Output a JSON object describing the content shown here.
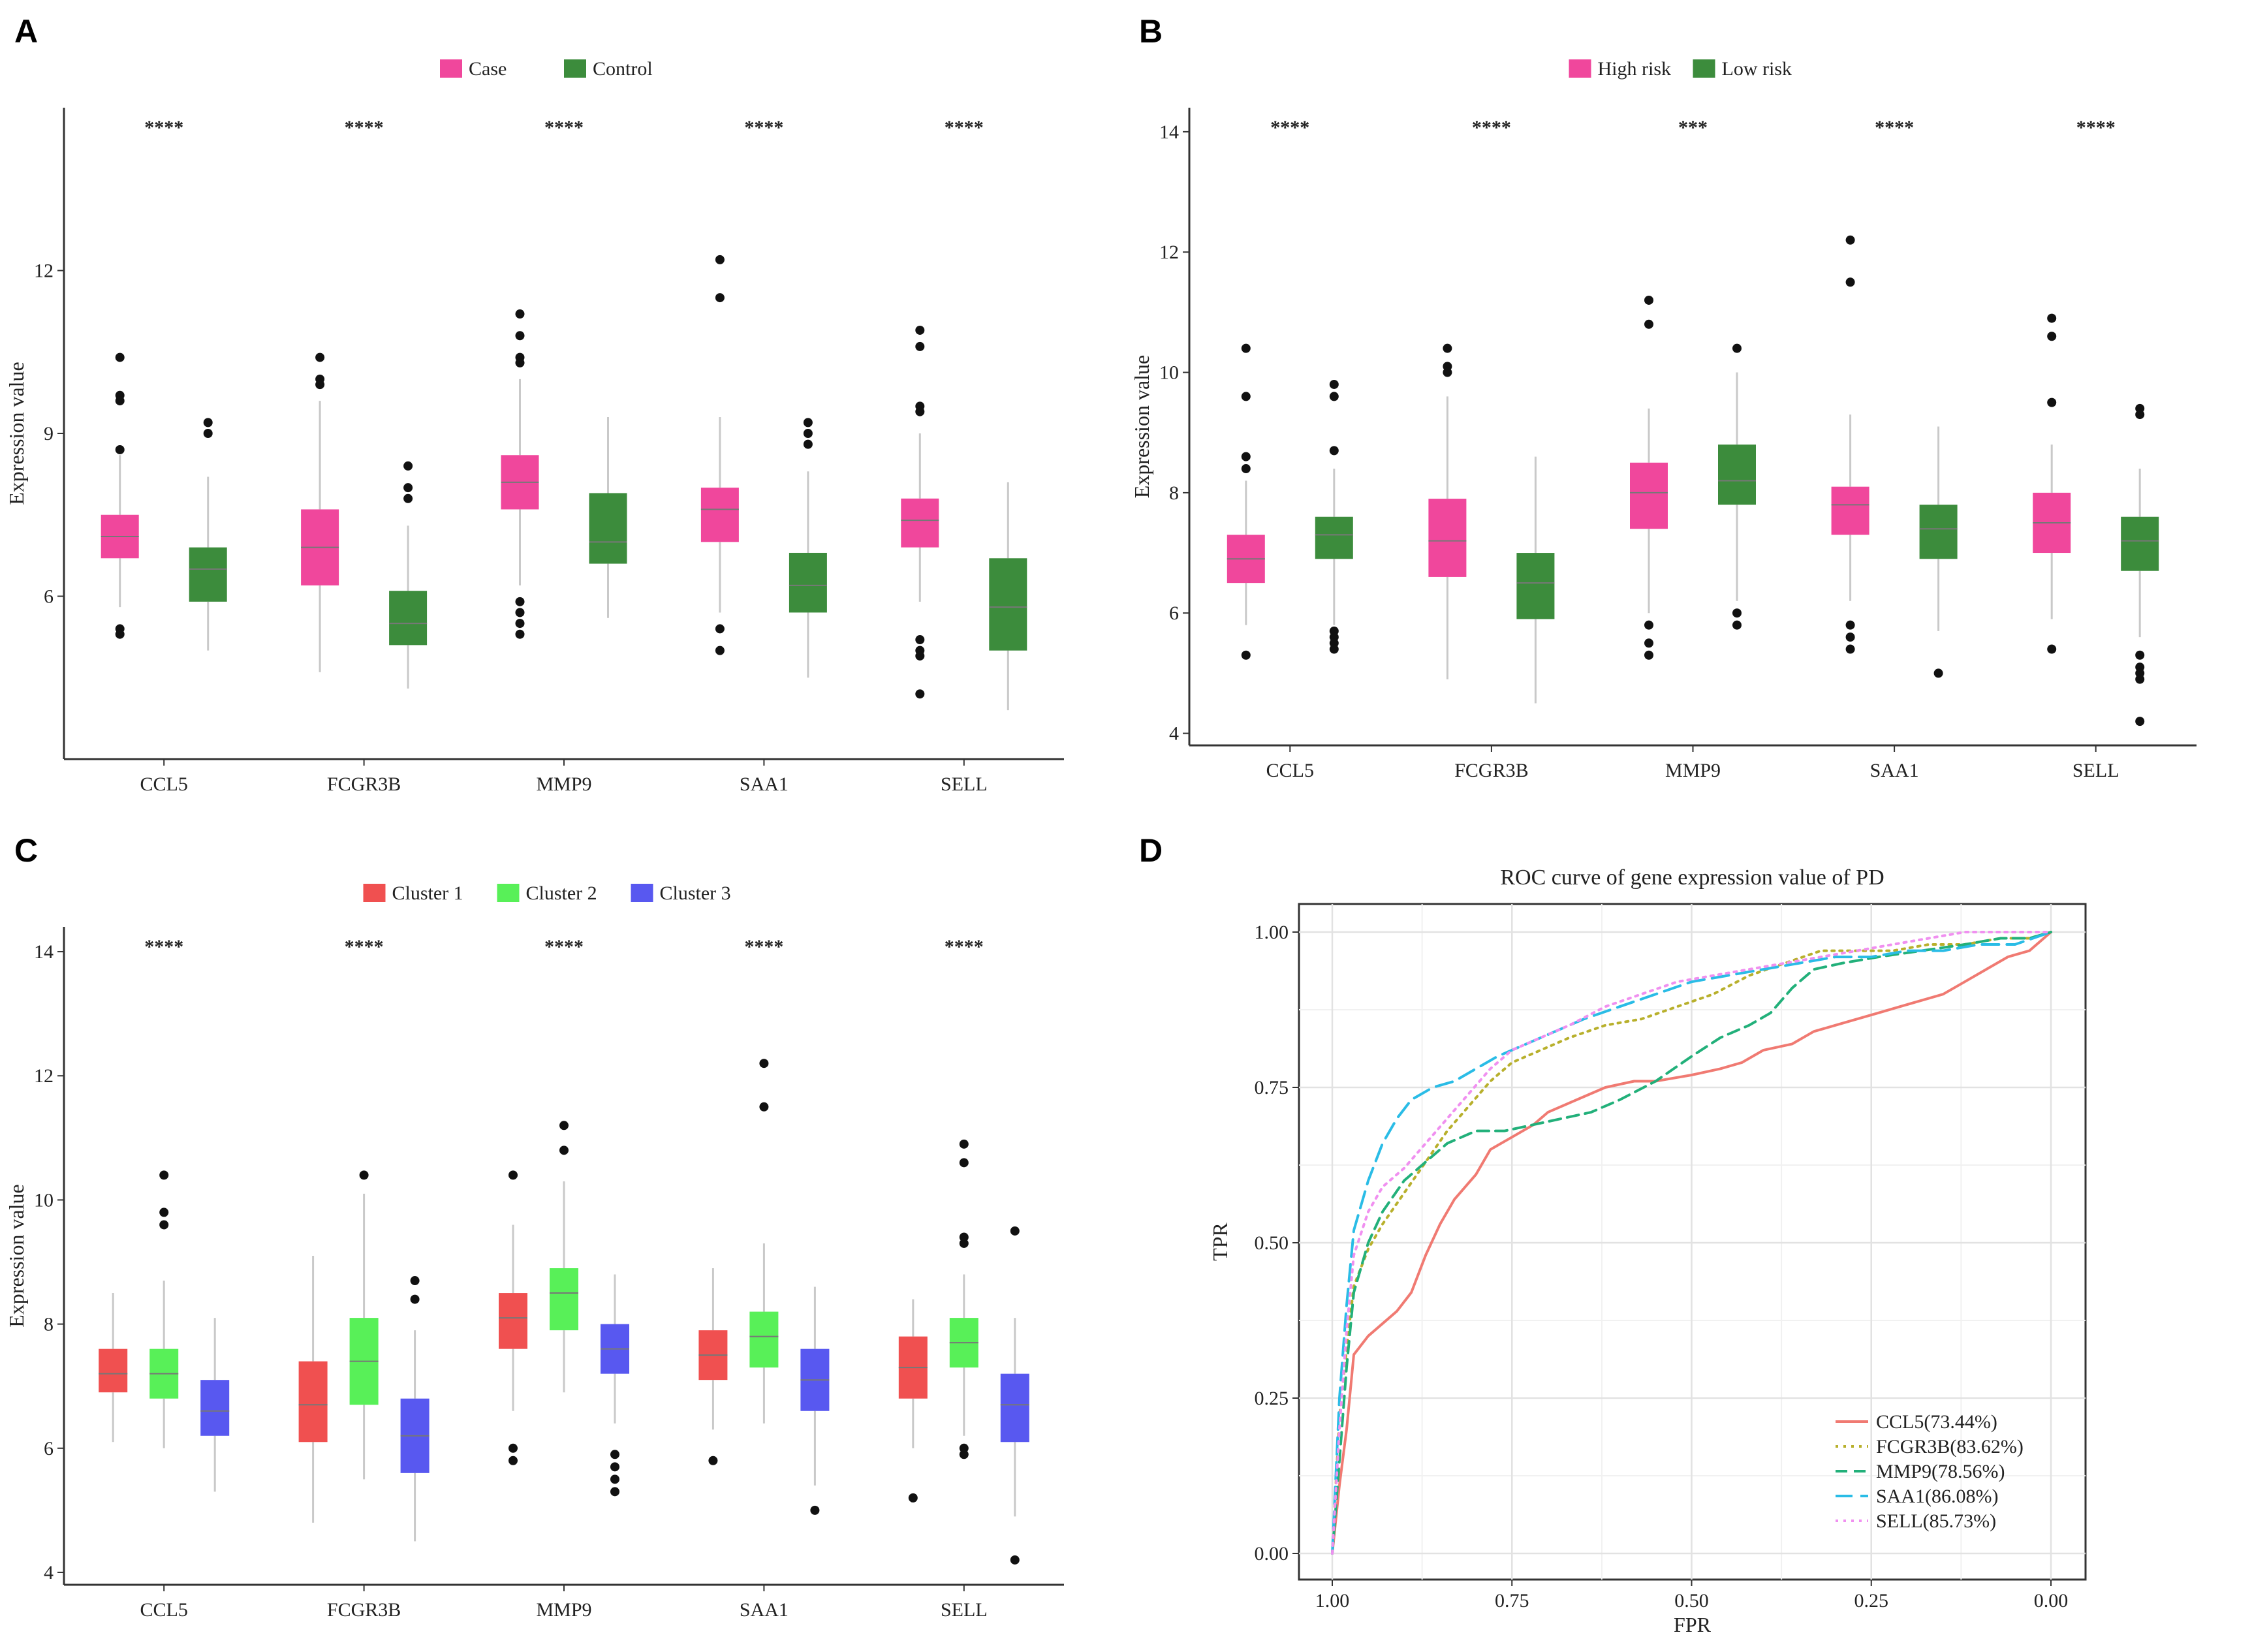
{
  "panels": {
    "A": "A",
    "B": "B",
    "C": "C",
    "D": "D"
  },
  "colors": {
    "case": "#f0479c",
    "control": "#3c8c3c",
    "cluster1": "#f05050",
    "cluster2": "#58f058",
    "cluster3": "#5858f0",
    "ccl5": "#f07a72",
    "fcgr3b": "#b8b02c",
    "mmp9": "#22b07a",
    "saa1": "#2abce6",
    "sell": "#f090f0"
  },
  "chart_data": [
    {
      "id": "A",
      "type": "box",
      "ylabel": "Expression value",
      "ylim": [
        3.0,
        15.0
      ],
      "yticks": [
        6,
        9,
        12
      ],
      "categories": [
        "CCL5",
        "FCGR3B",
        "MMP9",
        "SAA1",
        "SELL"
      ],
      "significance": [
        "****",
        "****",
        "****",
        "****",
        "****"
      ],
      "legend": [
        "Case",
        "Control"
      ],
      "series": [
        {
          "name": "Case",
          "color_key": "case",
          "boxes": [
            {
              "q1": 6.7,
              "med": 7.1,
              "q3": 7.5,
              "lo": 5.8,
              "hi": 8.6,
              "out": [
                10.4,
                9.7,
                9.6,
                8.7,
                5.4,
                5.3
              ]
            },
            {
              "q1": 6.2,
              "med": 6.9,
              "q3": 7.6,
              "lo": 4.6,
              "hi": 9.6,
              "out": [
                10.4,
                10.0,
                9.9
              ]
            },
            {
              "q1": 7.6,
              "med": 8.1,
              "q3": 8.6,
              "lo": 6.2,
              "hi": 10.0,
              "out": [
                11.2,
                10.8,
                10.4,
                10.3,
                5.9,
                5.7,
                5.5,
                5.3
              ]
            },
            {
              "q1": 7.0,
              "med": 7.6,
              "q3": 8.0,
              "lo": 5.7,
              "hi": 9.3,
              "out": [
                12.2,
                11.5,
                5.4,
                5.0
              ]
            },
            {
              "q1": 6.9,
              "med": 7.4,
              "q3": 7.8,
              "lo": 5.9,
              "hi": 9.0,
              "out": [
                10.9,
                10.6,
                9.5,
                9.4,
                5.2,
                5.0,
                4.9,
                4.2
              ]
            }
          ]
        },
        {
          "name": "Control",
          "color_key": "control",
          "boxes": [
            {
              "q1": 5.9,
              "med": 6.5,
              "q3": 6.9,
              "lo": 5.0,
              "hi": 8.2,
              "out": [
                9.2,
                9.0
              ]
            },
            {
              "q1": 5.1,
              "med": 5.5,
              "q3": 6.1,
              "lo": 4.3,
              "hi": 7.3,
              "out": [
                8.4,
                8.0,
                7.8
              ]
            },
            {
              "q1": 6.6,
              "med": 7.0,
              "q3": 7.9,
              "lo": 5.6,
              "hi": 9.3,
              "out": []
            },
            {
              "q1": 5.7,
              "med": 6.2,
              "q3": 6.8,
              "lo": 4.5,
              "hi": 8.3,
              "out": [
                9.2,
                9.0,
                8.8
              ]
            },
            {
              "q1": 5.0,
              "med": 5.8,
              "q3": 6.7,
              "lo": 3.9,
              "hi": 8.1,
              "out": []
            }
          ]
        }
      ]
    },
    {
      "id": "B",
      "type": "box",
      "ylabel": "Expression value",
      "ylim": [
        3.8,
        14.4
      ],
      "yticks": [
        4,
        6,
        8,
        10,
        12,
        14
      ],
      "categories": [
        "CCL5",
        "FCGR3B",
        "MMP9",
        "SAA1",
        "SELL"
      ],
      "significance": [
        "****",
        "****",
        "***",
        "****",
        "****"
      ],
      "legend": [
        "High risk",
        "Low risk"
      ],
      "series": [
        {
          "name": "High risk",
          "color_key": "case",
          "boxes": [
            {
              "q1": 6.5,
              "med": 6.9,
              "q3": 7.3,
              "lo": 5.8,
              "hi": 8.2,
              "out": [
                10.4,
                9.6,
                8.6,
                8.4,
                5.3
              ]
            },
            {
              "q1": 6.6,
              "med": 7.2,
              "q3": 7.9,
              "lo": 4.9,
              "hi": 9.6,
              "out": [
                10.4,
                10.1,
                10.0
              ]
            },
            {
              "q1": 7.4,
              "med": 8.0,
              "q3": 8.5,
              "lo": 6.0,
              "hi": 9.4,
              "out": [
                11.2,
                10.8,
                5.8,
                5.5,
                5.3
              ]
            },
            {
              "q1": 7.3,
              "med": 7.8,
              "q3": 8.1,
              "lo": 6.2,
              "hi": 9.3,
              "out": [
                12.2,
                11.5,
                5.8,
                5.6,
                5.4
              ]
            },
            {
              "q1": 7.0,
              "med": 7.5,
              "q3": 8.0,
              "lo": 5.9,
              "hi": 8.8,
              "out": [
                10.9,
                10.6,
                9.5,
                5.4
              ]
            }
          ]
        },
        {
          "name": "Low risk",
          "color_key": "control",
          "boxes": [
            {
              "q1": 6.9,
              "med": 7.3,
              "q3": 7.6,
              "lo": 5.8,
              "hi": 8.4,
              "out": [
                9.8,
                9.6,
                8.7,
                5.7,
                5.6,
                5.5,
                5.4
              ]
            },
            {
              "q1": 5.9,
              "med": 6.5,
              "q3": 7.0,
              "lo": 4.5,
              "hi": 8.6,
              "out": []
            },
            {
              "q1": 7.8,
              "med": 8.2,
              "q3": 8.8,
              "lo": 6.2,
              "hi": 10.0,
              "out": [
                10.4,
                6.0,
                5.8
              ]
            },
            {
              "q1": 6.9,
              "med": 7.4,
              "q3": 7.8,
              "lo": 5.7,
              "hi": 9.1,
              "out": [
                5.0
              ]
            },
            {
              "q1": 6.7,
              "med": 7.2,
              "q3": 7.6,
              "lo": 5.6,
              "hi": 8.4,
              "out": [
                9.4,
                9.3,
                5.3,
                5.1,
                5.0,
                4.9,
                4.2
              ]
            }
          ]
        }
      ]
    },
    {
      "id": "C",
      "type": "box",
      "ylabel": "Expression value",
      "ylim": [
        3.8,
        14.4
      ],
      "yticks": [
        4,
        6,
        8,
        10,
        12,
        14
      ],
      "categories": [
        "CCL5",
        "FCGR3B",
        "MMP9",
        "SAA1",
        "SELL"
      ],
      "significance": [
        "****",
        "****",
        "****",
        "****",
        "****"
      ],
      "legend": [
        "Cluster 1",
        "Cluster 2",
        "Cluster 3"
      ],
      "series": [
        {
          "name": "Cluster 1",
          "color_key": "cluster1",
          "boxes": [
            {
              "q1": 6.9,
              "med": 7.2,
              "q3": 7.6,
              "lo": 6.1,
              "hi": 8.5,
              "out": []
            },
            {
              "q1": 6.1,
              "med": 6.7,
              "q3": 7.4,
              "lo": 4.8,
              "hi": 9.1,
              "out": []
            },
            {
              "q1": 7.6,
              "med": 8.1,
              "q3": 8.5,
              "lo": 6.6,
              "hi": 9.6,
              "out": [
                10.4,
                6.0,
                5.8
              ]
            },
            {
              "q1": 7.1,
              "med": 7.5,
              "q3": 7.9,
              "lo": 6.3,
              "hi": 8.9,
              "out": [
                5.8
              ]
            },
            {
              "q1": 6.8,
              "med": 7.3,
              "q3": 7.8,
              "lo": 6.0,
              "hi": 8.4,
              "out": [
                5.2
              ]
            }
          ]
        },
        {
          "name": "Cluster 2",
          "color_key": "cluster2",
          "boxes": [
            {
              "q1": 6.8,
              "med": 7.2,
              "q3": 7.6,
              "lo": 6.0,
              "hi": 8.7,
              "out": [
                10.4,
                9.8,
                9.6
              ]
            },
            {
              "q1": 6.7,
              "med": 7.4,
              "q3": 8.1,
              "lo": 5.5,
              "hi": 10.1,
              "out": [
                10.4
              ]
            },
            {
              "q1": 7.9,
              "med": 8.5,
              "q3": 8.9,
              "lo": 6.9,
              "hi": 10.3,
              "out": [
                11.2,
                10.8
              ]
            },
            {
              "q1": 7.3,
              "med": 7.8,
              "q3": 8.2,
              "lo": 6.4,
              "hi": 9.3,
              "out": [
                12.2,
                11.5
              ]
            },
            {
              "q1": 7.3,
              "med": 7.7,
              "q3": 8.1,
              "lo": 6.2,
              "hi": 8.8,
              "out": [
                10.9,
                10.6,
                9.4,
                9.3,
                6.0,
                5.9
              ]
            }
          ]
        },
        {
          "name": "Cluster 3",
          "color_key": "cluster3",
          "boxes": [
            {
              "q1": 6.2,
              "med": 6.6,
              "q3": 7.1,
              "lo": 5.3,
              "hi": 8.1,
              "out": []
            },
            {
              "q1": 5.6,
              "med": 6.2,
              "q3": 6.8,
              "lo": 4.5,
              "hi": 7.9,
              "out": [
                8.7,
                8.4
              ]
            },
            {
              "q1": 7.2,
              "med": 7.6,
              "q3": 8.0,
              "lo": 6.4,
              "hi": 8.8,
              "out": [
                5.9,
                5.7,
                5.5,
                5.3
              ]
            },
            {
              "q1": 6.6,
              "med": 7.1,
              "q3": 7.6,
              "lo": 5.4,
              "hi": 8.6,
              "out": [
                5.0
              ]
            },
            {
              "q1": 6.1,
              "med": 6.7,
              "q3": 7.2,
              "lo": 4.9,
              "hi": 8.1,
              "out": [
                9.5,
                4.2
              ]
            }
          ]
        }
      ]
    },
    {
      "id": "D",
      "type": "line",
      "title": "ROC curve of gene expression value of PD",
      "xlabel": "FPR",
      "ylabel": "TPR",
      "xlim": [
        1.0,
        0.0
      ],
      "ylim": [
        0.0,
        1.0
      ],
      "xticks": [
        "1.00",
        "0.75",
        "0.50",
        "0.25",
        "0.00"
      ],
      "yticks": [
        "0.00",
        "0.25",
        "0.50",
        "0.75",
        "1.00"
      ],
      "series": [
        {
          "name": "CCL5(73.44%)",
          "color_key": "ccl5",
          "dash": "solid",
          "x": [
            1.0,
            0.99,
            0.98,
            0.97,
            0.95,
            0.93,
            0.91,
            0.89,
            0.87,
            0.85,
            0.83,
            0.8,
            0.78,
            0.75,
            0.72,
            0.7,
            0.66,
            0.62,
            0.58,
            0.55,
            0.5,
            0.46,
            0.43,
            0.4,
            0.36,
            0.33,
            0.3,
            0.27,
            0.24,
            0.21,
            0.18,
            0.15,
            0.12,
            0.09,
            0.06,
            0.03,
            0.0
          ],
          "y": [
            0.0,
            0.11,
            0.2,
            0.32,
            0.35,
            0.37,
            0.39,
            0.42,
            0.48,
            0.53,
            0.57,
            0.61,
            0.65,
            0.67,
            0.69,
            0.71,
            0.73,
            0.75,
            0.76,
            0.76,
            0.77,
            0.78,
            0.79,
            0.81,
            0.82,
            0.84,
            0.85,
            0.86,
            0.87,
            0.88,
            0.89,
            0.9,
            0.92,
            0.94,
            0.96,
            0.97,
            1.0
          ]
        },
        {
          "name": "FCGR3B(83.62%)",
          "color_key": "fcgr3b",
          "dash": "dotted",
          "x": [
            1.0,
            0.99,
            0.98,
            0.97,
            0.95,
            0.93,
            0.9,
            0.87,
            0.84,
            0.81,
            0.78,
            0.75,
            0.71,
            0.67,
            0.62,
            0.57,
            0.52,
            0.47,
            0.42,
            0.37,
            0.32,
            0.27,
            0.22,
            0.17,
            0.12,
            0.07,
            0.03,
            0.0
          ],
          "y": [
            0.0,
            0.22,
            0.33,
            0.43,
            0.49,
            0.53,
            0.58,
            0.63,
            0.68,
            0.72,
            0.76,
            0.79,
            0.81,
            0.83,
            0.85,
            0.86,
            0.88,
            0.9,
            0.93,
            0.95,
            0.97,
            0.97,
            0.97,
            0.98,
            0.98,
            0.99,
            0.99,
            1.0
          ]
        },
        {
          "name": "MMP9(78.56%)",
          "color_key": "mmp9",
          "dash": "dashed",
          "x": [
            1.0,
            0.99,
            0.98,
            0.97,
            0.95,
            0.93,
            0.9,
            0.87,
            0.84,
            0.8,
            0.76,
            0.72,
            0.68,
            0.64,
            0.6,
            0.55,
            0.5,
            0.46,
            0.42,
            0.39,
            0.36,
            0.33,
            0.29,
            0.24,
            0.18,
            0.12,
            0.07,
            0.03,
            0.0
          ],
          "y": [
            0.0,
            0.15,
            0.3,
            0.42,
            0.5,
            0.55,
            0.6,
            0.63,
            0.66,
            0.68,
            0.68,
            0.69,
            0.7,
            0.71,
            0.73,
            0.76,
            0.8,
            0.83,
            0.85,
            0.87,
            0.91,
            0.94,
            0.95,
            0.96,
            0.97,
            0.98,
            0.99,
            0.99,
            1.0
          ]
        },
        {
          "name": "SAA1(86.08%)",
          "color_key": "saa1",
          "dash": "longdash",
          "x": [
            1.0,
            0.99,
            0.98,
            0.97,
            0.95,
            0.93,
            0.91,
            0.89,
            0.86,
            0.83,
            0.8,
            0.77,
            0.73,
            0.69,
            0.65,
            0.6,
            0.55,
            0.5,
            0.45,
            0.4,
            0.35,
            0.3,
            0.25,
            0.2,
            0.15,
            0.1,
            0.05,
            0.0
          ],
          "y": [
            0.0,
            0.25,
            0.4,
            0.52,
            0.6,
            0.66,
            0.7,
            0.73,
            0.75,
            0.76,
            0.78,
            0.8,
            0.82,
            0.84,
            0.86,
            0.88,
            0.9,
            0.92,
            0.93,
            0.94,
            0.95,
            0.96,
            0.96,
            0.97,
            0.97,
            0.98,
            0.98,
            1.0
          ]
        },
        {
          "name": "SELL(85.73%)",
          "color_key": "sell",
          "dash": "dotted",
          "x": [
            1.0,
            0.99,
            0.98,
            0.97,
            0.95,
            0.93,
            0.9,
            0.87,
            0.84,
            0.81,
            0.78,
            0.75,
            0.71,
            0.67,
            0.62,
            0.57,
            0.52,
            0.47,
            0.42,
            0.37,
            0.32,
            0.27,
            0.22,
            0.17,
            0.12,
            0.07,
            0.03,
            0.0
          ],
          "y": [
            0.0,
            0.2,
            0.36,
            0.48,
            0.55,
            0.59,
            0.62,
            0.66,
            0.7,
            0.74,
            0.78,
            0.81,
            0.83,
            0.85,
            0.88,
            0.9,
            0.92,
            0.93,
            0.94,
            0.95,
            0.96,
            0.97,
            0.98,
            0.99,
            1.0,
            1.0,
            1.0,
            1.0
          ]
        }
      ]
    }
  ]
}
